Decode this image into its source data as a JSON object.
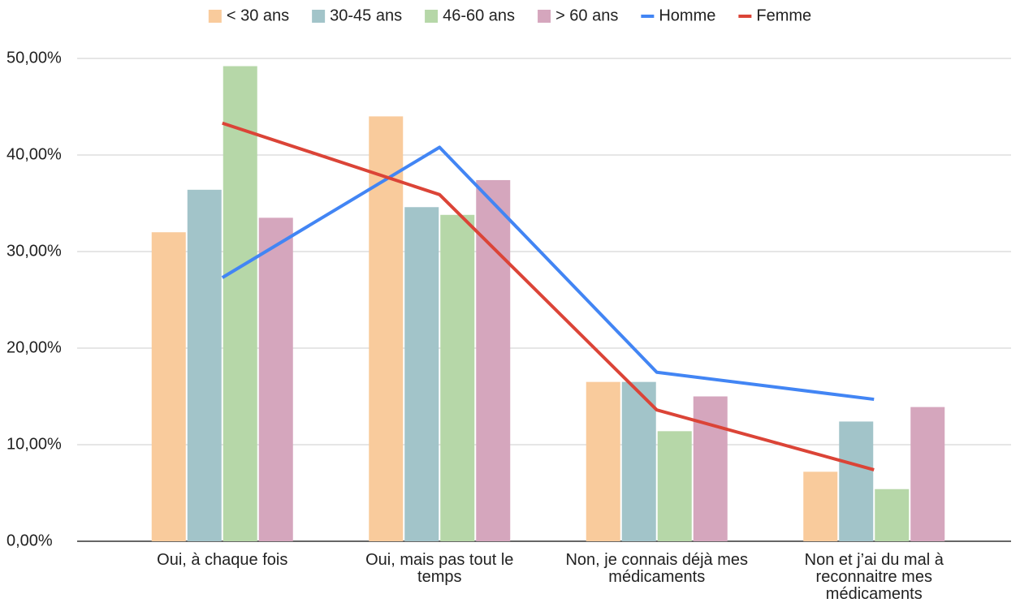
{
  "chart_data": {
    "type": "bar+line",
    "categories": [
      "Oui, à chaque fois",
      "Oui, mais pas tout le temps",
      "Non, je connais déjà mes médicaments",
      "Non et j’ai du mal à reconnaitre mes médicaments"
    ],
    "series": [
      {
        "name": "< 30 ans",
        "type": "bar",
        "color": "#f9cb9c",
        "values": [
          32.0,
          44.0,
          16.5,
          7.2
        ]
      },
      {
        "name": "30-45 ans",
        "type": "bar",
        "color": "#a2c4c9",
        "values": [
          36.4,
          34.6,
          16.5,
          12.4
        ]
      },
      {
        "name": "46-60 ans",
        "type": "bar",
        "color": "#b6d7a8",
        "values": [
          49.2,
          33.8,
          11.4,
          5.4
        ]
      },
      {
        "name": "> 60 ans",
        "type": "bar",
        "color": "#d5a6bd",
        "values": [
          33.5,
          37.4,
          15.0,
          13.9
        ]
      },
      {
        "name": "Homme",
        "type": "line",
        "color": "#4285f4",
        "values": [
          27.3,
          40.8,
          17.5,
          14.7
        ]
      },
      {
        "name": "Femme",
        "type": "line",
        "color": "#db4437",
        "values": [
          43.3,
          35.9,
          13.6,
          7.4
        ]
      }
    ],
    "ylim": [
      0,
      50
    ],
    "yticks": [
      {
        "value": 0,
        "label": "0,00%"
      },
      {
        "value": 10,
        "label": "10,00%"
      },
      {
        "value": 20,
        "label": "20,00%"
      },
      {
        "value": 30,
        "label": "30,00%"
      },
      {
        "value": 40,
        "label": "40,00%"
      },
      {
        "value": 50,
        "label": "50,00%"
      }
    ],
    "grid": true,
    "legend": "top"
  }
}
